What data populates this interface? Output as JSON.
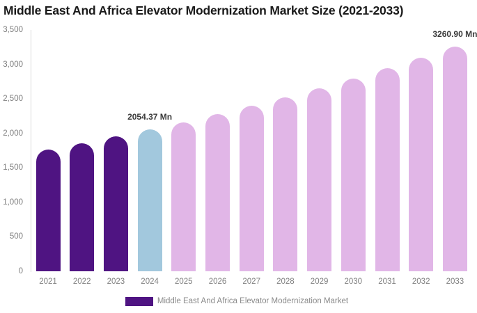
{
  "title": "Middle East And Africa Elevator Modernization Market Size (2021-2033)",
  "legend": {
    "label": "Middle East And Africa Elevator Modernization Market"
  },
  "colors": {
    "historical": "#4F1482",
    "base_year": "#A2C8DD",
    "forecast": "#E1B6E7",
    "axis_line": "#D9D9D9",
    "tick_text": "#7F7F7F",
    "value_label_text": "#3A3A3A",
    "title_text": "#1A1A1A",
    "legend_text": "#8A8A8A",
    "background": "#FFFFFF"
  },
  "chart_data": {
    "type": "bar",
    "title": "Middle East And Africa Elevator Modernization Market Size (2021-2033)",
    "unit": "Mn",
    "categories": [
      "2021",
      "2022",
      "2023",
      "2024",
      "2025",
      "2026",
      "2027",
      "2028",
      "2029",
      "2030",
      "2031",
      "2032",
      "2033"
    ],
    "values": [
      1761,
      1854,
      1952,
      2054.37,
      2163,
      2277,
      2396,
      2523,
      2656,
      2795,
      2943,
      3098,
      3260.9
    ],
    "color_roles": [
      "historical",
      "historical",
      "historical",
      "base_year",
      "forecast",
      "forecast",
      "forecast",
      "forecast",
      "forecast",
      "forecast",
      "forecast",
      "forecast",
      "forecast"
    ],
    "point_labels": [
      {
        "category": "2024",
        "text": "2054.37 Mn"
      },
      {
        "category": "2033",
        "text": "3260.90 Mn"
      }
    ],
    "xlabel": "",
    "ylabel": "",
    "ylim": [
      0,
      3500
    ],
    "y_ticks": [
      0,
      500,
      1000,
      1500,
      2000,
      2500,
      3000,
      3500
    ],
    "y_tick_labels": [
      "0",
      "500",
      "1,000",
      "1,500",
      "2,000",
      "2,500",
      "3,000",
      "3,500"
    ],
    "grid": false,
    "legend_position": "bottom",
    "legend_entries": [
      "Middle East And Africa Elevator Modernization Market"
    ]
  }
}
